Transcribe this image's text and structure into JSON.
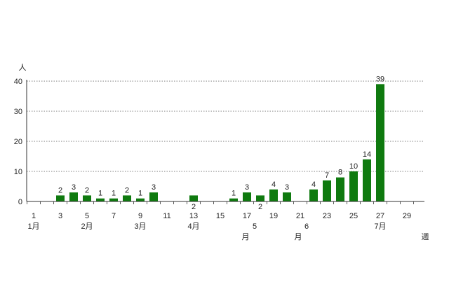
{
  "chart_data": {
    "type": "bar",
    "ylabel": "人",
    "xlabel": "週",
    "ylim": [
      0,
      40
    ],
    "yticks": [
      0,
      10,
      20,
      30,
      40
    ],
    "grid": "horizontal dotted",
    "bar_color": "#0f7a0f",
    "weeks": [
      1,
      2,
      3,
      4,
      5,
      6,
      7,
      8,
      9,
      10,
      11,
      12,
      13,
      14,
      15,
      16,
      17,
      18,
      19,
      20,
      21,
      22,
      23,
      24,
      25,
      26,
      27,
      28,
      29,
      30
    ],
    "xticks": [
      1,
      3,
      5,
      7,
      9,
      11,
      13,
      15,
      17,
      19,
      21,
      23,
      25,
      27,
      29
    ],
    "bars": [
      {
        "week": 3,
        "value": 2
      },
      {
        "week": 4,
        "value": 3
      },
      {
        "week": 5,
        "value": 2
      },
      {
        "week": 6,
        "value": 1
      },
      {
        "week": 7,
        "value": 1
      },
      {
        "week": 8,
        "value": 2
      },
      {
        "week": 9,
        "value": 1
      },
      {
        "week": 10,
        "value": 3
      },
      {
        "week": 13,
        "value": 2
      },
      {
        "week": 16,
        "value": 1
      },
      {
        "week": 17,
        "value": 3
      },
      {
        "week": 18,
        "value": 2
      },
      {
        "week": 19,
        "value": 4
      },
      {
        "week": 20,
        "value": 3
      },
      {
        "week": 22,
        "value": 4
      },
      {
        "week": 23,
        "value": 7
      },
      {
        "week": 24,
        "value": 8
      },
      {
        "week": 25,
        "value": 10
      },
      {
        "week": 26,
        "value": 14
      },
      {
        "week": 27,
        "value": 39
      }
    ],
    "months": [
      {
        "label": "1月",
        "week": 1
      },
      {
        "label": "2月",
        "week": 5
      },
      {
        "label": "3月",
        "week": 9
      },
      {
        "label": "4月",
        "week": 13
      },
      {
        "label": "5",
        "week": 18
      },
      {
        "label": "月",
        "week": 17
      },
      {
        "label": "6",
        "week": 22
      },
      {
        "label": "月",
        "week": 21
      },
      {
        "label": "7月",
        "week": 27
      }
    ]
  }
}
